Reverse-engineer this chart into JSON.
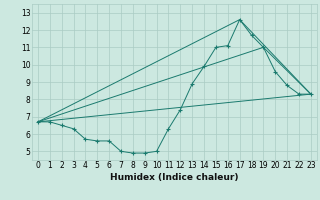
{
  "xlabel": "Humidex (Indice chaleur)",
  "bg_color": "#cce8e0",
  "grid_color": "#aaccc4",
  "line_color": "#1a7a6e",
  "xlim": [
    -0.5,
    23.5
  ],
  "ylim": [
    4.5,
    13.5
  ],
  "xticks": [
    0,
    1,
    2,
    3,
    4,
    5,
    6,
    7,
    8,
    9,
    10,
    11,
    12,
    13,
    14,
    15,
    16,
    17,
    18,
    19,
    20,
    21,
    22,
    23
  ],
  "yticks": [
    5,
    6,
    7,
    8,
    9,
    10,
    11,
    12,
    13
  ],
  "series": [
    {
      "x": [
        0,
        1,
        2,
        3,
        4,
        5,
        6,
        7,
        8,
        9,
        10,
        11,
        12,
        13,
        14,
        15,
        16,
        17,
        18,
        19,
        20,
        21,
        22,
        23
      ],
      "y": [
        6.7,
        6.7,
        6.5,
        6.3,
        5.7,
        5.6,
        5.6,
        5.0,
        4.9,
        4.9,
        5.0,
        6.3,
        7.4,
        8.9,
        9.9,
        11.0,
        11.1,
        12.6,
        11.7,
        11.0,
        9.6,
        8.8,
        8.3,
        8.3
      ],
      "marker": "+"
    },
    {
      "x": [
        0,
        23
      ],
      "y": [
        6.7,
        8.3
      ],
      "marker": null
    },
    {
      "x": [
        0,
        17,
        23
      ],
      "y": [
        6.7,
        12.6,
        8.3
      ],
      "marker": null
    },
    {
      "x": [
        0,
        19,
        23
      ],
      "y": [
        6.7,
        11.0,
        8.3
      ],
      "marker": null
    }
  ],
  "figsize": [
    3.2,
    2.0
  ],
  "dpi": 100,
  "tick_fontsize": 5.5,
  "xlabel_fontsize": 6.5
}
